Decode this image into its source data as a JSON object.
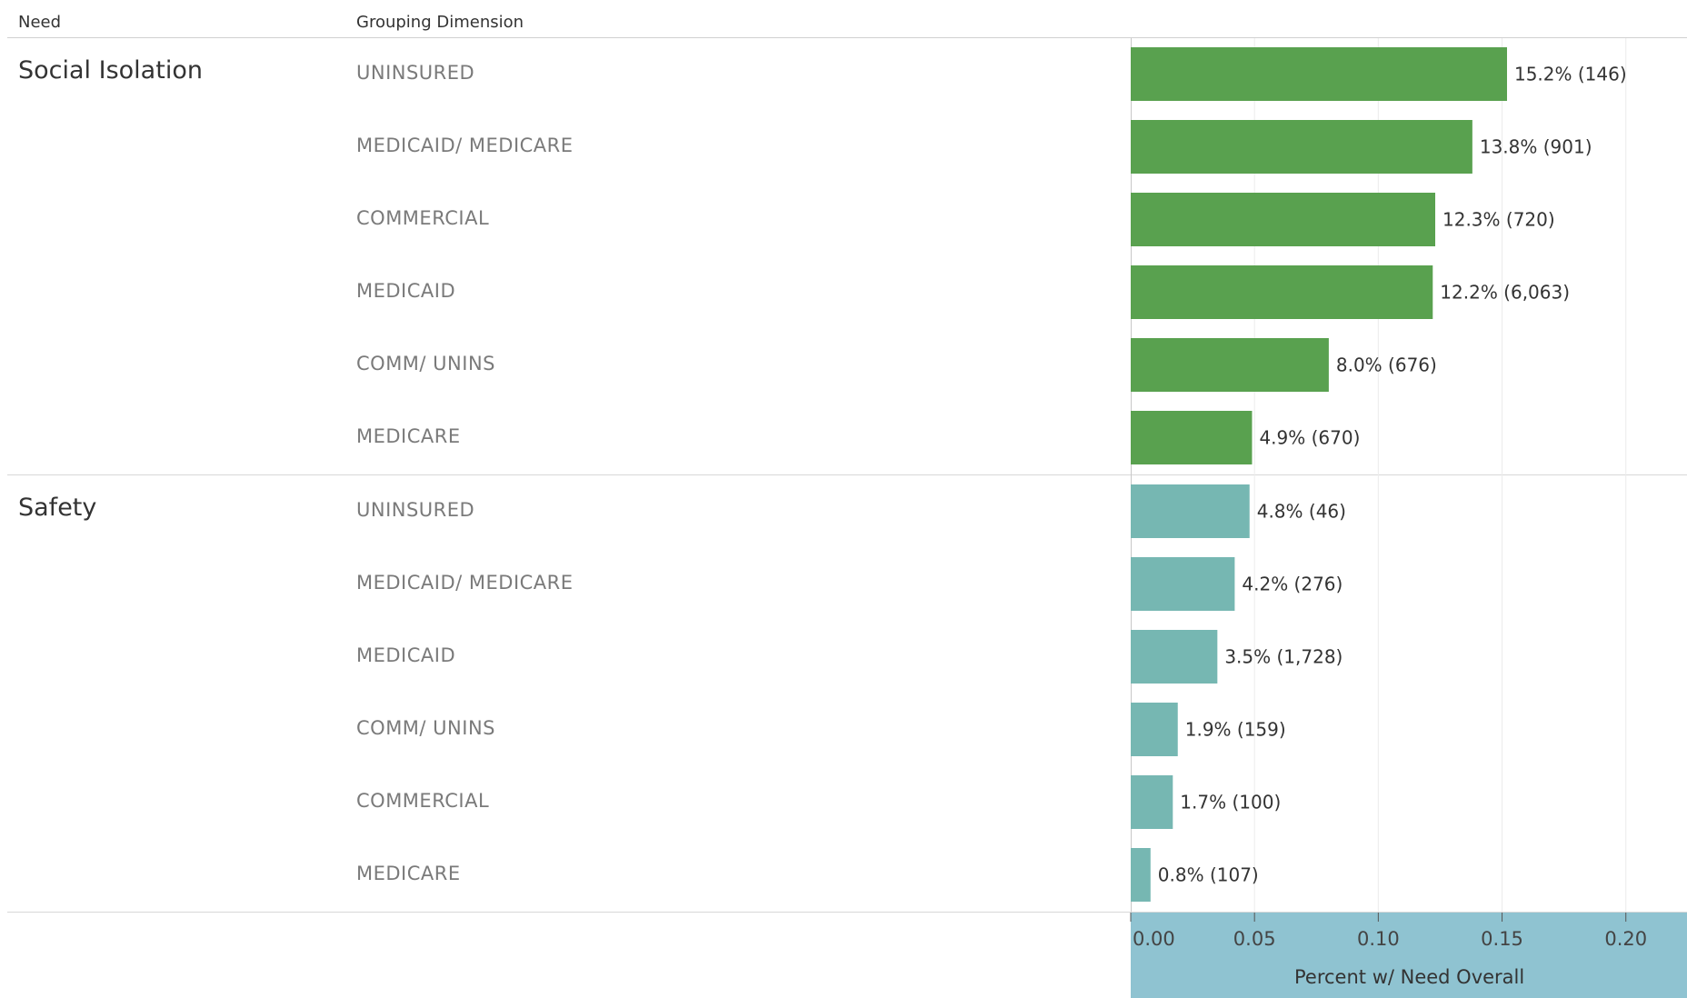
{
  "headers": {
    "need": "Need",
    "grouping": "Grouping Dimension"
  },
  "groups": [
    {
      "need": "Social Isolation",
      "color": "#59a14f",
      "rows": [
        {
          "label": "UNINSURED",
          "value": 0.152,
          "text": "15.2% (146)"
        },
        {
          "label": "MEDICAID/ MEDICARE",
          "value": 0.138,
          "text": "13.8% (901)"
        },
        {
          "label": "COMMERCIAL",
          "value": 0.123,
          "text": "12.3% (720)"
        },
        {
          "label": "MEDICAID",
          "value": 0.122,
          "text": "12.2% (6,063)"
        },
        {
          "label": "COMM/ UNINS",
          "value": 0.08,
          "text": "8.0% (676)"
        },
        {
          "label": "MEDICARE",
          "value": 0.049,
          "text": "4.9% (670)"
        }
      ]
    },
    {
      "need": "Safety",
      "color": "#76b7b2",
      "rows": [
        {
          "label": "UNINSURED",
          "value": 0.048,
          "text": "4.8% (46)"
        },
        {
          "label": "MEDICAID/ MEDICARE",
          "value": 0.042,
          "text": "4.2% (276)"
        },
        {
          "label": "MEDICAID",
          "value": 0.035,
          "text": "3.5% (1,728)"
        },
        {
          "label": "COMM/ UNINS",
          "value": 0.019,
          "text": "1.9% (159)"
        },
        {
          "label": "COMMERCIAL",
          "value": 0.017,
          "text": "1.7% (100)"
        },
        {
          "label": "MEDICARE",
          "value": 0.008,
          "text": "0.8% (107)"
        }
      ]
    }
  ],
  "chart_data": {
    "type": "bar",
    "orientation": "horizontal",
    "xlabel": "Percent w/ Need Overall",
    "xlim": [
      0,
      0.2
    ],
    "xticks": [
      "0.00",
      "0.05",
      "0.10",
      "0.15",
      "0.20"
    ],
    "xtick_values": [
      0,
      0.05,
      0.1,
      0.15,
      0.2
    ],
    "grid": true,
    "series": [
      {
        "name": "Social Isolation",
        "categories": [
          "UNINSURED",
          "MEDICAID/ MEDICARE",
          "COMMERCIAL",
          "MEDICAID",
          "COMM/ UNINS",
          "MEDICARE"
        ],
        "values": [
          0.152,
          0.138,
          0.123,
          0.122,
          0.08,
          0.049
        ]
      },
      {
        "name": "Safety",
        "categories": [
          "UNINSURED",
          "MEDICAID/ MEDICARE",
          "MEDICAID",
          "COMM/ UNINS",
          "COMMERCIAL",
          "MEDICARE"
        ],
        "values": [
          0.048,
          0.042,
          0.035,
          0.019,
          0.017,
          0.008
        ]
      }
    ]
  }
}
